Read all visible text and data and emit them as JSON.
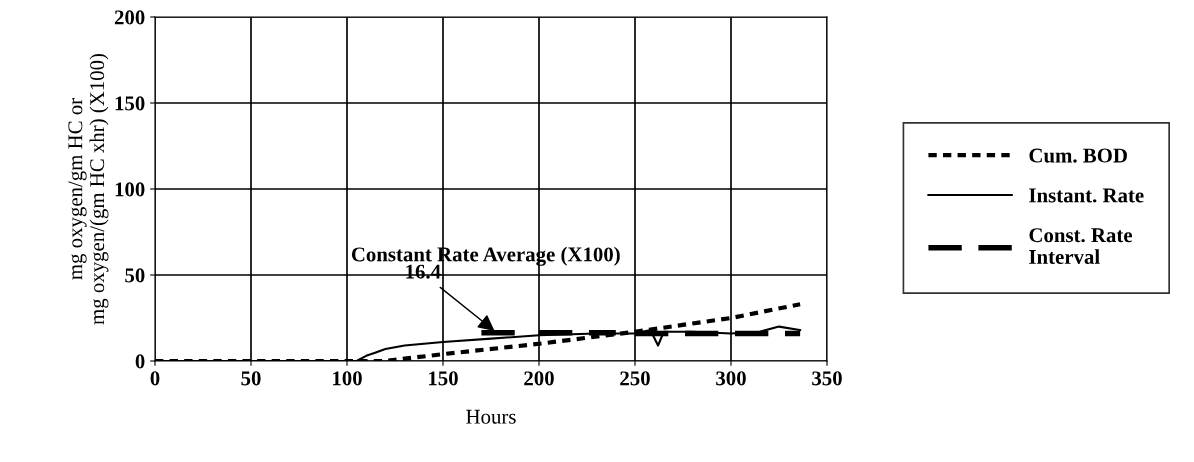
{
  "chart_data": {
    "type": "line",
    "xlabel": "Hours",
    "ylabel": "mg oxygen/gm HC or\nmg oxygen/(gm HC xhr) (X100)",
    "xlim": [
      0,
      350
    ],
    "xticks": [
      0,
      50,
      100,
      150,
      200,
      250,
      300,
      350
    ],
    "ylim": [
      0,
      200
    ],
    "yticks": [
      0,
      50,
      100,
      150,
      200
    ],
    "grid": true,
    "legend": "right",
    "series": [
      {
        "name": "Cum. BOD",
        "color": "#000000",
        "line_style": "dotted",
        "x": [
          0,
          120,
          150,
          200,
          250,
          300,
          336
        ],
        "values": [
          0,
          0,
          4,
          10,
          17,
          25,
          33
        ]
      },
      {
        "name": "Instant. Rate",
        "color": "#000000",
        "line_style": "solid",
        "x": [
          0,
          105,
          110,
          115,
          120,
          130,
          150,
          175,
          200,
          230,
          250,
          258,
          262,
          265,
          280,
          300,
          315,
          325,
          336
        ],
        "values": [
          0,
          0,
          3,
          5,
          7,
          9,
          11,
          13,
          15,
          16,
          16,
          18,
          9,
          17,
          17,
          16,
          17,
          20,
          18
        ]
      },
      {
        "name": "Const. Rate\nInterval",
        "color": "#000000",
        "line_style": "dashed",
        "x": [
          170,
          190,
          195,
          200,
          240,
          245,
          250,
          336
        ],
        "values": [
          16.4,
          16.4,
          null,
          16.4,
          16.4,
          null,
          16,
          16
        ]
      }
    ],
    "annotations": [
      "Constant Rate Average (X100)",
      {
        "text": "16.4",
        "x": 178,
        "y": 16.4
      }
    ]
  }
}
